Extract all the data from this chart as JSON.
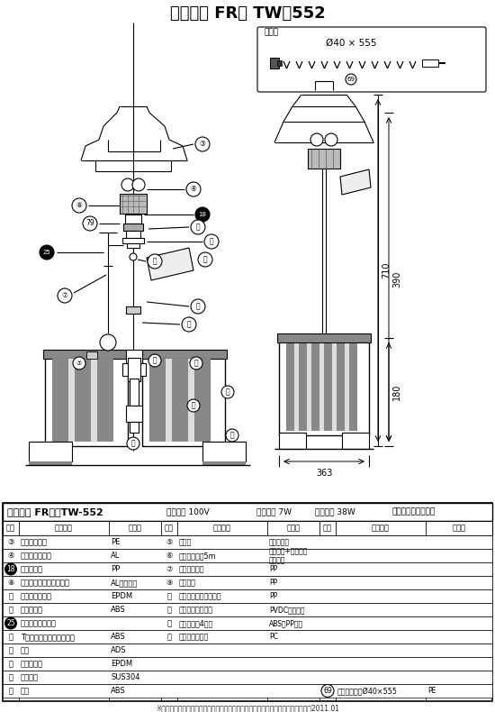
{
  "title": "せせらぎ FR　 TW－552",
  "accessory_label": "付属品",
  "accessory_dim": "Ø40 × 555",
  "accessory_num": "69",
  "spec_line1": "せせらぎ FR　　TW-552",
  "spec_line2": "定格電圧 100V",
  "spec_line3": "定格出力 7W",
  "spec_line4": "消費電力 38W",
  "spec_line5": "タカラ工業株式会社",
  "dim_710": "710",
  "dim_390": "390",
  "dim_180": "180",
  "dim_363": "363",
  "table_rows": [
    [
      "③",
      "わらぶき屋根",
      "PE",
      "⑤",
      "軸受け",
      "ジェラコン",
      "",
      "",
      ""
    ],
    [
      "④",
      "モーターファン",
      "AL",
      "⑥",
      "電源コード　5m",
      "ビニール+フライト\nケーブル",
      "",
      "",
      ""
    ],
    [
      "18",
      "浸水検出器",
      "PP",
      "⑦",
      "蓋止めバンド",
      "PP",
      "",
      "",
      ""
    ],
    [
      "⑧",
      "モーター（クマトリ型）",
      "AL・鉄・銃",
      "⑨",
      "琖過槽蓋",
      "PP",
      "",
      "",
      ""
    ],
    [
      "⑪",
      "ジョイントゴム",
      "EPDM",
      "⑫",
      "琖過槽（本体支え付）",
      "PP",
      "",
      "",
      ""
    ],
    [
      "⑬",
      "補助ベース",
      "ABS",
      "⑭",
      "琖過材（ダブル）",
      "PVDCナイロン",
      "",
      "",
      ""
    ],
    [
      "25",
      "オーバーフロー穴",
      "",
      "⑮",
      "重り　（脚4ケ）",
      "ABS・PP・鉄",
      "",
      "",
      ""
    ],
    [
      "⑯",
      "Tパイプ（水切りゴム付）",
      "ABS",
      "⑰",
      "ふるさとベース",
      "PC",
      "",
      "",
      ""
    ],
    [
      "⑱",
      "蛇口",
      "ADS",
      "",
      "",
      "",
      "",
      "",
      ""
    ],
    [
      "⑲",
      "水切りゴム",
      "EPDM",
      "",
      "",
      "",
      "",
      "",
      ""
    ],
    [
      "⑳",
      "シャフト",
      "SUS304",
      "",
      "",
      "",
      "",
      "",
      ""
    ],
    [
      "⑴",
      "ベラ",
      "ABS",
      "",
      "",
      "",
      "69",
      "サイレンサーØ40×555",
      "PE"
    ]
  ],
  "footer": "※お断りなく材質形状等を変更する場合がございます。　白ヌキ・・・・非売品　2011.01",
  "bg_color": "#ffffff"
}
